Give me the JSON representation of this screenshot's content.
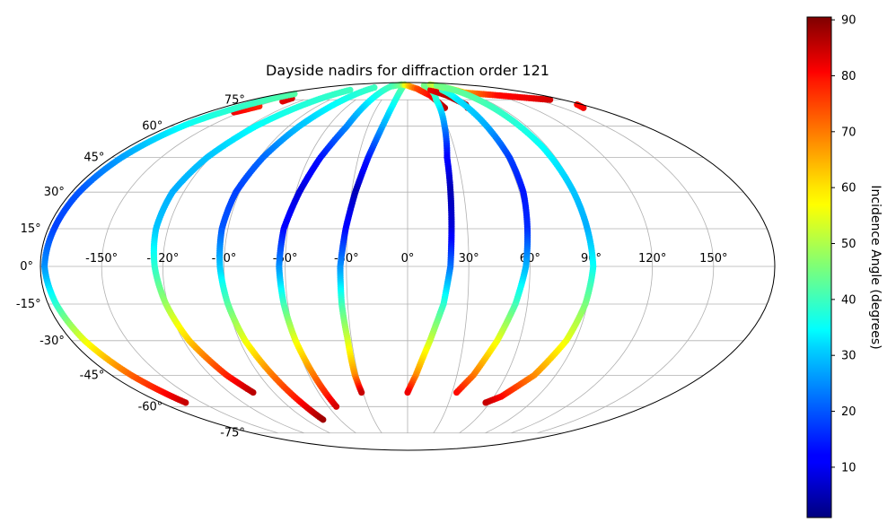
{
  "chart_data": {
    "type": "scatter",
    "projection": "mollweide",
    "title": "Dayside nadirs for diffraction order 121",
    "x_tick_labels": [
      "-150°",
      "-120°",
      "-90°",
      "-60°",
      "-30°",
      "0°",
      "30°",
      "60°",
      "90°",
      "120°",
      "150°"
    ],
    "x_ticks": [
      -150,
      -120,
      -90,
      -60,
      -30,
      0,
      30,
      60,
      90,
      120,
      150
    ],
    "y_tick_labels": [
      "-75°",
      "-60°",
      "-45°",
      "-30°",
      "-15°",
      "0°",
      "15°",
      "30°",
      "45°",
      "60°",
      "75°"
    ],
    "y_ticks": [
      -75,
      -60,
      -45,
      -30,
      -15,
      0,
      15,
      30,
      45,
      60,
      75
    ],
    "xlim": [
      -180,
      180
    ],
    "ylim": [
      -90,
      90
    ],
    "grid": true,
    "colormap": "jet",
    "colorbar": {
      "label": "Incidence Angle (degrees)",
      "range": [
        1,
        90.5
      ],
      "tick_labels": [
        "10",
        "20",
        "30",
        "40",
        "50",
        "60",
        "70",
        "80",
        "90"
      ],
      "ticks": [
        10,
        20,
        30,
        40,
        50,
        60,
        70,
        80,
        90
      ]
    },
    "series": [
      {
        "points": [
          [
            -156,
            67.5,
            82
          ],
          [
            -152,
            69,
            80
          ],
          [
            -148,
            71,
            78
          ]
        ]
      },
      {
        "points": [
          [
            -140,
            76,
            84
          ],
          [
            -139,
            74,
            83
          ]
        ]
      },
      {
        "points": [
          [
            -160,
            79,
            42
          ],
          [
            -170,
            62,
            36
          ],
          [
            -174,
            45,
            27
          ],
          [
            -176,
            30,
            20
          ],
          [
            -177,
            15,
            18
          ],
          [
            -178,
            0,
            25
          ],
          [
            -176,
            -15,
            38
          ],
          [
            -173,
            -30,
            55
          ],
          [
            -168,
            -45,
            72
          ],
          [
            -162,
            -58,
            85
          ]
        ]
      },
      {
        "points": [
          [
            -100,
            82,
            40
          ],
          [
            -115,
            60,
            35
          ],
          [
            -122,
            45,
            30
          ],
          [
            -126,
            30,
            28
          ],
          [
            -126,
            15,
            30
          ],
          [
            -124,
            0,
            38
          ],
          [
            -121,
            -15,
            48
          ],
          [
            -117,
            -30,
            62
          ],
          [
            -110,
            -45,
            78
          ],
          [
            -104,
            -53,
            86
          ]
        ]
      },
      {
        "points": [
          [
            -70,
            84,
            40
          ],
          [
            -82,
            60,
            30
          ],
          [
            -88,
            45,
            22
          ],
          [
            -92,
            30,
            18
          ],
          [
            -93,
            15,
            20
          ],
          [
            -92,
            0,
            30
          ],
          [
            -90,
            -15,
            42
          ],
          [
            -87,
            -30,
            55
          ],
          [
            -82,
            -45,
            70
          ],
          [
            -77,
            -60,
            82
          ],
          [
            -75,
            -67,
            88
          ]
        ]
      },
      {
        "points": [
          [
            -40,
            86,
            42
          ],
          [
            -46,
            60,
            25
          ],
          [
            -53,
            45,
            14
          ],
          [
            -58,
            30,
            8
          ],
          [
            -62,
            15,
            12
          ],
          [
            -63,
            0,
            25
          ],
          [
            -62,
            -15,
            40
          ],
          [
            -60,
            -30,
            55
          ],
          [
            -57,
            -45,
            70
          ],
          [
            -54,
            -60,
            84
          ]
        ]
      },
      {
        "points": [
          [
            -10,
            87,
            45
          ],
          [
            -19,
            60,
            28
          ],
          [
            -24,
            45,
            15
          ],
          [
            -28,
            30,
            5
          ],
          [
            -31,
            15,
            12
          ],
          [
            -33,
            0,
            25
          ],
          [
            -33,
            -15,
            40
          ],
          [
            -32,
            -30,
            53
          ],
          [
            -32,
            -45,
            68
          ],
          [
            -31,
            -53,
            85
          ]
        ]
      },
      {
        "points": [
          [
            -40,
            85,
            40
          ],
          [
            -20,
            87,
            45
          ],
          [
            0,
            86,
            60
          ],
          [
            18,
            83,
            74
          ],
          [
            30,
            78,
            80
          ],
          [
            36,
            70,
            86
          ]
        ]
      },
      {
        "points": [
          [
            45,
            86,
            45
          ],
          [
            33,
            75,
            38
          ],
          [
            28,
            60,
            25
          ],
          [
            24,
            45,
            12
          ],
          [
            23,
            30,
            5
          ],
          [
            22,
            15,
            8
          ],
          [
            21,
            0,
            22
          ],
          [
            18,
            -15,
            38
          ],
          [
            12,
            -30,
            52
          ],
          [
            5,
            -45,
            68
          ],
          [
            0,
            -53,
            82
          ]
        ]
      },
      {
        "points": [
          [
            40,
            82,
            82
          ],
          [
            52,
            78,
            86
          ],
          [
            60,
            72,
            88
          ],
          [
            58,
            70,
            85
          ]
        ]
      },
      {
        "points": [
          [
            60,
            82,
            40
          ],
          [
            58,
            75,
            33
          ],
          [
            60,
            60,
            28
          ],
          [
            62,
            45,
            18
          ],
          [
            62,
            30,
            14
          ],
          [
            60,
            15,
            16
          ],
          [
            58,
            0,
            28
          ],
          [
            54,
            -15,
            40
          ],
          [
            48,
            -30,
            55
          ],
          [
            40,
            -45,
            70
          ],
          [
            33,
            -53,
            80
          ]
        ]
      },
      {
        "points": [
          [
            75,
            87,
            50
          ],
          [
            85,
            80,
            65
          ],
          [
            120,
            78,
            80
          ],
          [
            150,
            76,
            82
          ],
          [
            165,
            75,
            84
          ]
        ]
      },
      {
        "points": [
          [
            80,
            86,
            45
          ],
          [
            83,
            70,
            40
          ],
          [
            87,
            50,
            35
          ],
          [
            89,
            30,
            30
          ],
          [
            90,
            15,
            28
          ],
          [
            91,
            0,
            35
          ],
          [
            89,
            -15,
            45
          ],
          [
            85,
            -30,
            55
          ],
          [
            77,
            -45,
            68
          ],
          [
            65,
            -55,
            80
          ],
          [
            57,
            -58,
            85
          ]
        ]
      },
      {
        "points": [
          [
            170,
            70,
            82
          ],
          [
            175,
            72,
            80
          ]
        ]
      }
    ]
  }
}
